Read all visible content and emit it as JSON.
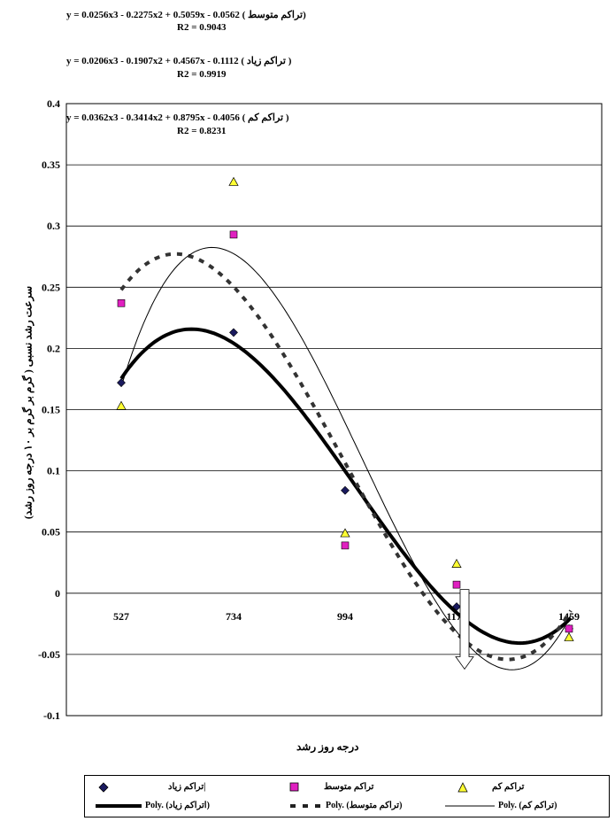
{
  "chart_data": {
    "type": "scatter",
    "categories": [
      "527",
      "734",
      "994",
      "1172",
      "1459"
    ],
    "xlabel": "درجه روز رشد",
    "ylabel": "سرعت رشد نسبی ( گرم بر گرم بر ۱۰ درجه روز رشد)",
    "ylim": [
      -0.1,
      0.4
    ],
    "yticks": [
      "-0.1",
      "-0.05",
      "0",
      "0.05",
      "0.1",
      "0.15",
      "0.2",
      "0.25",
      "0.3",
      "0.35",
      "0.4"
    ],
    "grid": true,
    "series": [
      {
        "name": "تراکم زیاد|",
        "marker": "diamond",
        "color": "#1a1a5e",
        "values": [
          0.172,
          0.213,
          0.084,
          -0.011,
          -0.029
        ]
      },
      {
        "name": "تراکم متوسط",
        "marker": "square",
        "color": "#e020c0",
        "values": [
          0.237,
          0.293,
          0.039,
          0.007,
          -0.029
        ]
      },
      {
        "name": "تراکم کم",
        "marker": "triangle",
        "color": "#ffff33",
        "values": [
          0.153,
          0.336,
          0.049,
          0.024,
          -0.036
        ]
      }
    ],
    "trendlines": [
      {
        "name": "Poly. (اتراکم زیاد)",
        "style": "thick",
        "equation": "y = 0.0206x3 - 0.1907x2 + 0.4567x - 0.1112 ( تراکم زیاد )",
        "r2": "R2 = 0.9919",
        "coef": [
          0.0206,
          -0.1907,
          0.4567,
          -0.1112
        ]
      },
      {
        "name": "Poly. (تراکم متوسط)",
        "style": "dashed",
        "equation": "y = 0.0256x3 - 0.2275x2 + 0.5059x - 0.0562 ( تراکم متوسط)",
        "r2": "R2 = 0.9043",
        "coef": [
          0.0256,
          -0.2275,
          0.5059,
          -0.0562
        ]
      },
      {
        "name": "Poly. (تراکم کم)",
        "style": "thin",
        "equation": "y = 0.0362x3 - 0.3414x2 + 0.8795x - 0.4056 ( تراکم کم )",
        "r2": "R2 = 0.8231",
        "coef": [
          0.0362,
          -0.3414,
          0.8795,
          -0.4056
        ]
      }
    ]
  },
  "legend": {
    "row1": [
      "تراکم زیاد|",
      "تراکم متوسط",
      "تراکم کم"
    ],
    "row2": [
      "Poly. (اتراکم زیاد)",
      "Poly. (تراکم متوسط)",
      "Poly. (تراکم کم)"
    ]
  }
}
